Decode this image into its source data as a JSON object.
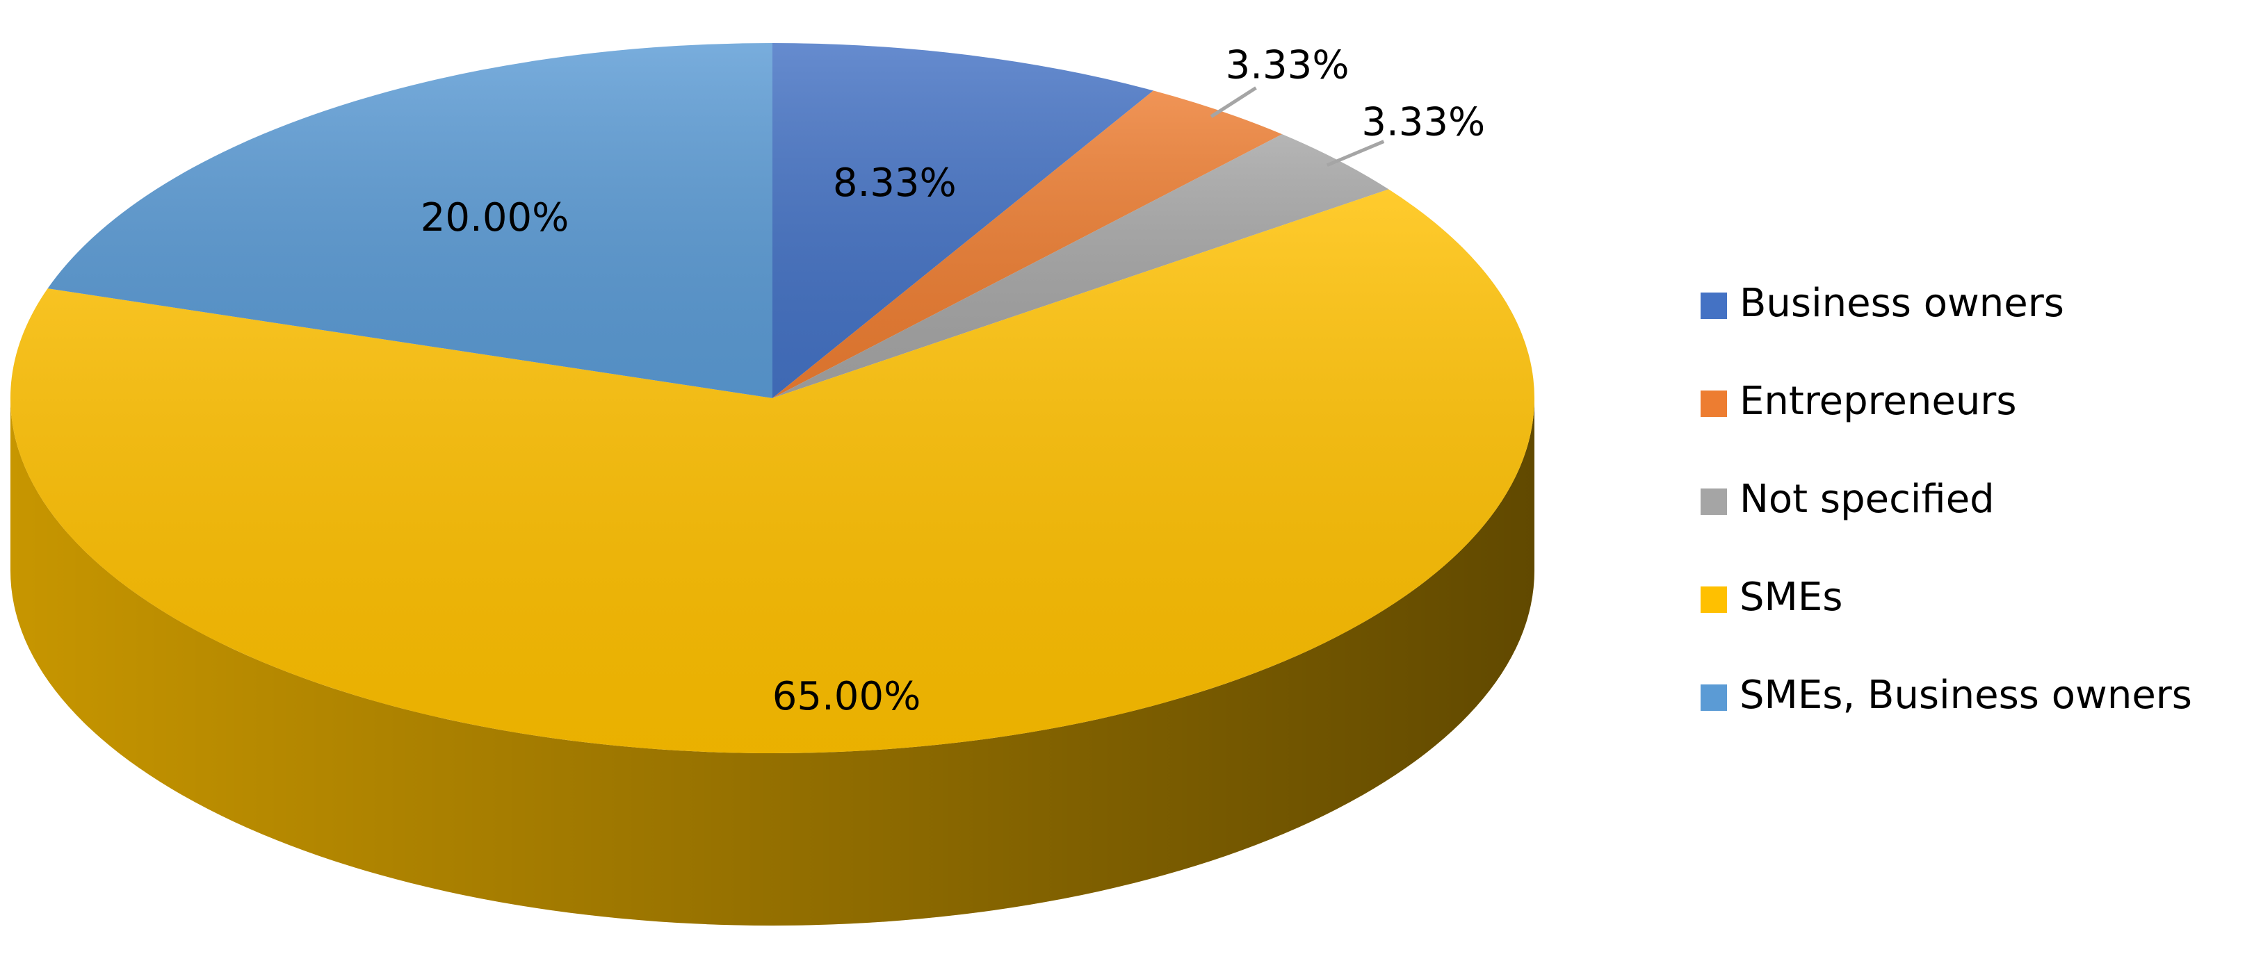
{
  "chart_data": {
    "type": "pie",
    "categories": [
      "Business owners",
      "Entrepreneurs",
      "Not specified",
      "SMEs",
      "SMEs, Business owners"
    ],
    "values": [
      8.33,
      3.33,
      3.33,
      65.0,
      20.0
    ],
    "value_labels": [
      "8.33%",
      "3.33%",
      "3.33%",
      "65.00%",
      "20.00%"
    ],
    "colors": [
      "#4472c4",
      "#ed7d31",
      "#a5a5a5",
      "#ffc000",
      "#5b9bd5"
    ],
    "legend": "right",
    "three_d": true
  }
}
